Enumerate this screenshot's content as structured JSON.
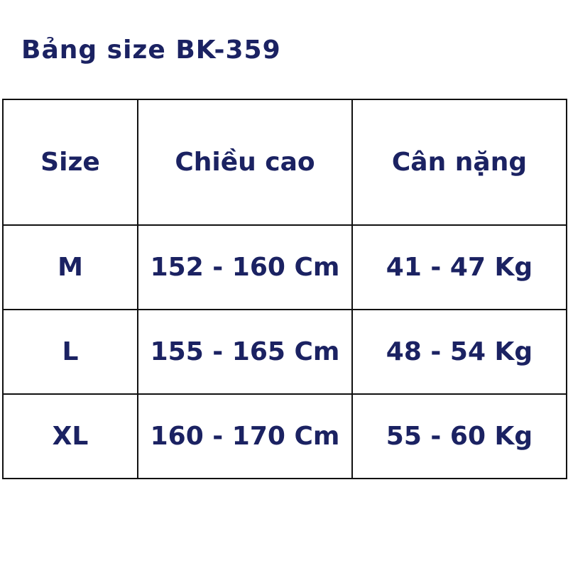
{
  "title": "Bảng size BK-359",
  "table": {
    "headers": [
      "Size",
      "Chiều cao",
      "Cân nặng"
    ],
    "rows": [
      [
        "M",
        "152 - 160 Cm",
        "41 - 47 Kg"
      ],
      [
        "L",
        "155 - 165 Cm",
        "48 - 54 Kg"
      ],
      [
        "XL",
        "160 - 170 Cm",
        "55 - 60 Kg"
      ]
    ]
  },
  "colors": {
    "text": "#1b2262",
    "border": "#111111"
  }
}
